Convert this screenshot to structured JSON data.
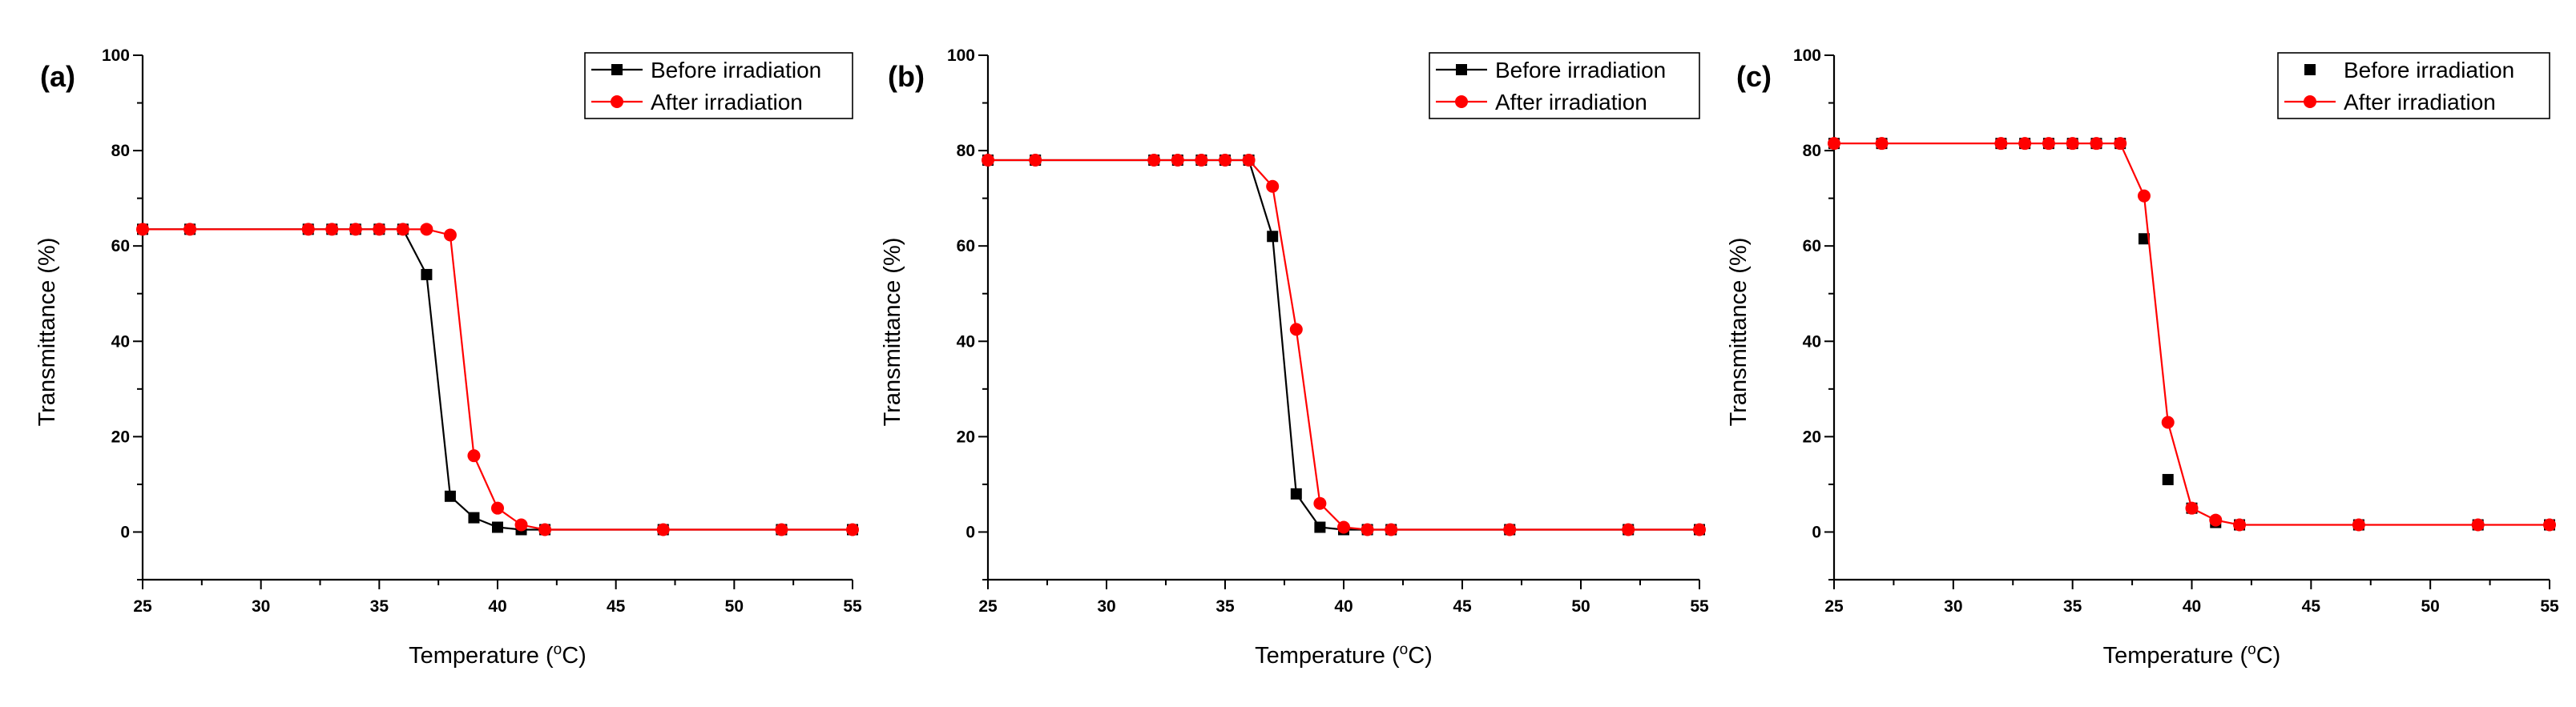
{
  "colors": {
    "before": "#000000",
    "after": "#ff0000"
  },
  "chart_data": [
    {
      "type": "line",
      "panel_label": "(a)",
      "xlabel_main": "Temperature (",
      "xlabel_degree": "o",
      "xlabel_unit": "C)",
      "ylabel": "Transmittance (%)",
      "xlim": [
        25,
        55
      ],
      "ylim": [
        -10,
        100
      ],
      "x_ticks": [
        "25",
        "30",
        "35",
        "40",
        "45",
        "50",
        "55"
      ],
      "y_ticks": [
        "0",
        "20",
        "40",
        "60",
        "80",
        "100"
      ],
      "legend_position": "top-right",
      "series": [
        {
          "name": "Before irradiation",
          "marker": "square",
          "color_key": "before",
          "show_line": true,
          "x": [
            25,
            27,
            32,
            33,
            34,
            35,
            36,
            37,
            38,
            39,
            40,
            41,
            42,
            47,
            52,
            55
          ],
          "y": [
            63.5,
            63.5,
            63.5,
            63.5,
            63.5,
            63.5,
            63.5,
            54,
            7.5,
            3,
            1,
            0.5,
            0.5,
            0.5,
            0.5,
            0.5
          ]
        },
        {
          "name": "After irradiation",
          "marker": "circle",
          "color_key": "after",
          "show_line": true,
          "x": [
            25,
            27,
            32,
            33,
            34,
            35,
            36,
            37,
            38,
            39,
            40,
            41,
            42,
            47,
            52,
            55
          ],
          "y": [
            63.5,
            63.5,
            63.5,
            63.5,
            63.5,
            63.5,
            63.5,
            63.5,
            62.3,
            16,
            5,
            1.5,
            0.5,
            0.5,
            0.5,
            0.5
          ]
        }
      ]
    },
    {
      "type": "line",
      "panel_label": "(b)",
      "xlabel_main": "Temperature (",
      "xlabel_degree": "o",
      "xlabel_unit": "C)",
      "ylabel": "Transmittance (%)",
      "xlim": [
        25,
        55
      ],
      "ylim": [
        -10,
        100
      ],
      "x_ticks": [
        "25",
        "30",
        "35",
        "40",
        "45",
        "50",
        "55"
      ],
      "y_ticks": [
        "0",
        "20",
        "40",
        "60",
        "80",
        "100"
      ],
      "legend_position": "top-right",
      "series": [
        {
          "name": "Before irradiation",
          "marker": "square",
          "color_key": "before",
          "show_line": true,
          "x": [
            25,
            27,
            32,
            33,
            34,
            35,
            36,
            37,
            38,
            39,
            40,
            41,
            42,
            47,
            52,
            55
          ],
          "y": [
            78,
            78,
            78,
            78,
            78,
            78,
            78,
            62,
            8,
            1,
            0.5,
            0.5,
            0.5,
            0.5,
            0.5,
            0.5
          ]
        },
        {
          "name": "After irradiation",
          "marker": "circle",
          "color_key": "after",
          "show_line": true,
          "x": [
            25,
            27,
            32,
            33,
            34,
            35,
            36,
            37,
            38,
            39,
            40,
            41,
            42,
            47,
            52,
            55
          ],
          "y": [
            78,
            78,
            78,
            78,
            78,
            78,
            78,
            72.5,
            42.5,
            6,
            1,
            0.5,
            0.5,
            0.5,
            0.5,
            0.5
          ]
        }
      ]
    },
    {
      "type": "line",
      "panel_label": "(c)",
      "xlabel_main": "Temperature (",
      "xlabel_degree": "o",
      "xlabel_unit": "C)",
      "ylabel": "Transmittance (%)",
      "xlim": [
        25,
        55
      ],
      "ylim": [
        -10,
        100
      ],
      "x_ticks": [
        "25",
        "30",
        "35",
        "40",
        "45",
        "50",
        "55"
      ],
      "y_ticks": [
        "0",
        "20",
        "40",
        "60",
        "80",
        "100"
      ],
      "legend_position": "top-right",
      "series": [
        {
          "name": "Before irradiation",
          "marker": "square",
          "color_key": "before",
          "show_line": false,
          "x": [
            25,
            27,
            32,
            33,
            34,
            35,
            36,
            37,
            38,
            39,
            40,
            41,
            42,
            47,
            52,
            55
          ],
          "y": [
            81.5,
            81.5,
            81.5,
            81.5,
            81.5,
            81.5,
            81.5,
            81.5,
            61.5,
            11,
            5,
            2,
            1.5,
            1.5,
            1.5,
            1.5
          ]
        },
        {
          "name": "After irradiation",
          "marker": "circle",
          "color_key": "after",
          "show_line": true,
          "x": [
            25,
            27,
            32,
            33,
            34,
            35,
            36,
            37,
            38,
            39,
            40,
            41,
            42,
            47,
            52,
            55
          ],
          "y": [
            81.5,
            81.5,
            81.5,
            81.5,
            81.5,
            81.5,
            81.5,
            81.5,
            70.5,
            23,
            5,
            2.5,
            1.5,
            1.5,
            1.5,
            1.5
          ]
        }
      ]
    }
  ]
}
